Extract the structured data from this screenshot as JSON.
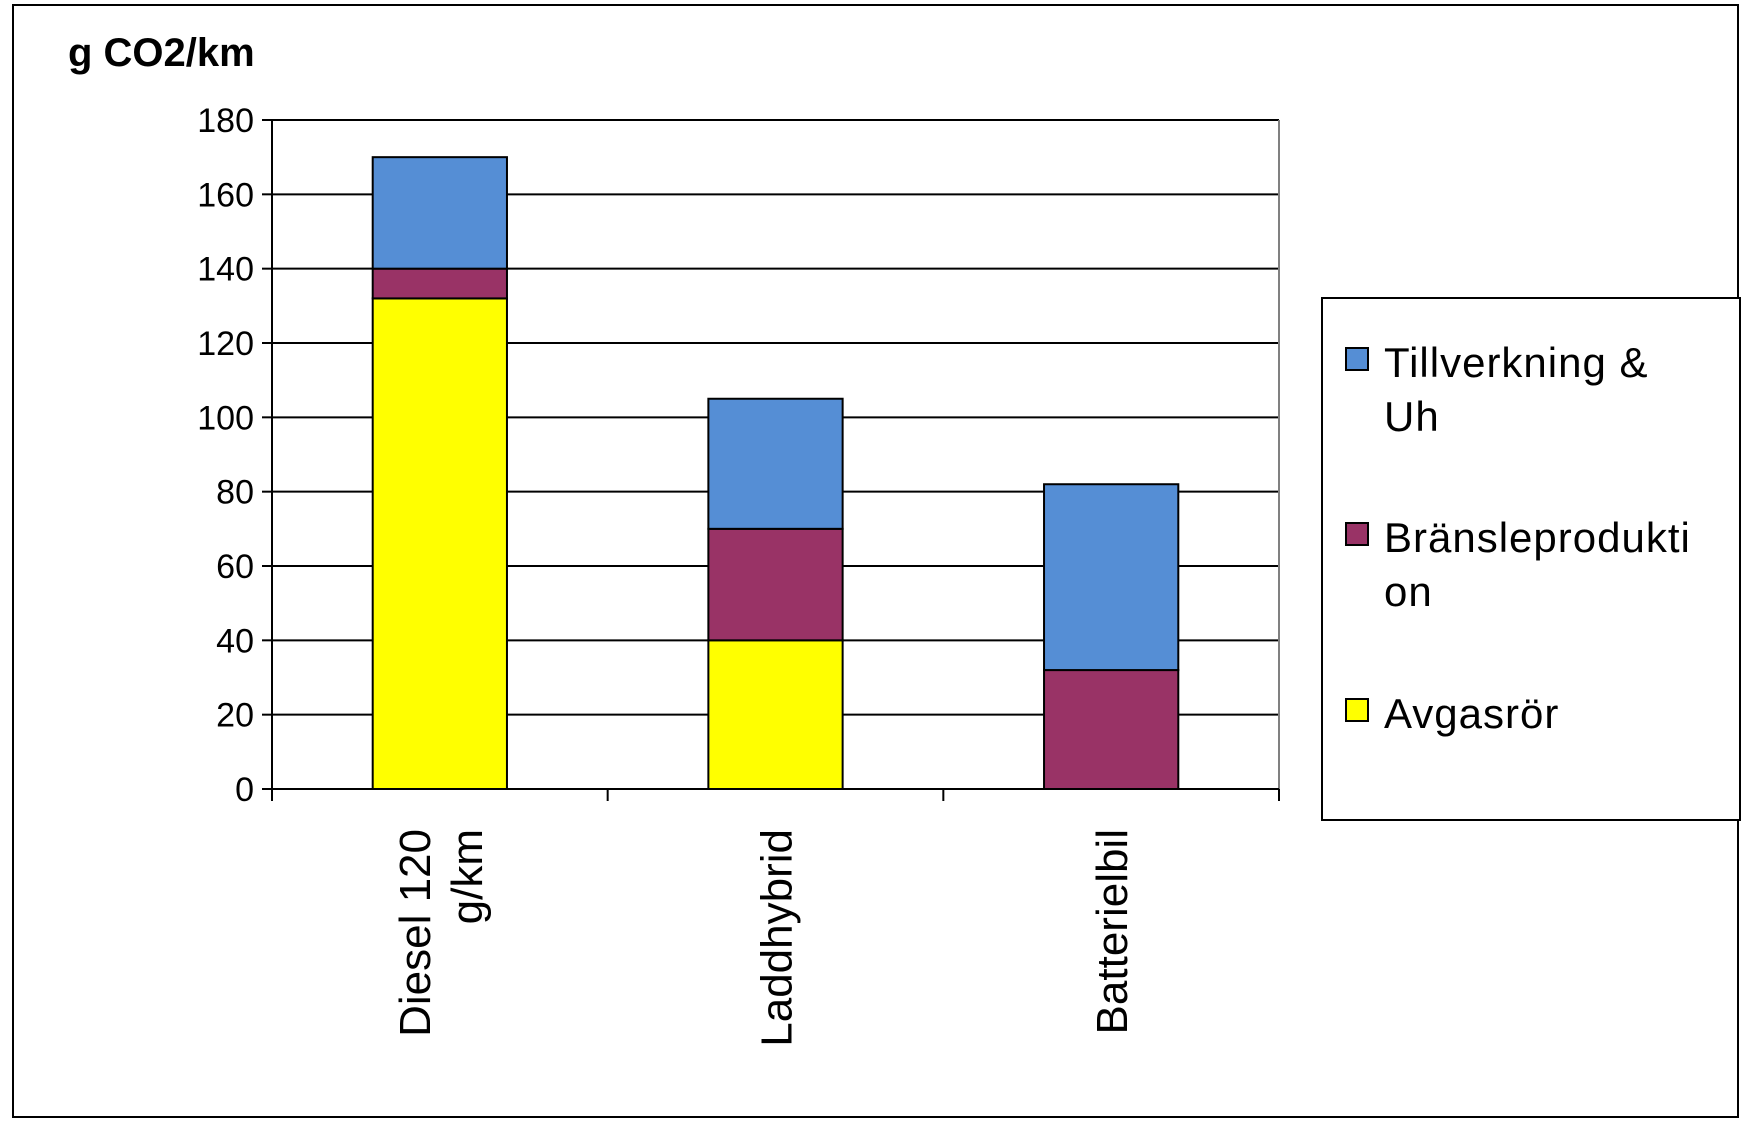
{
  "chart_data": {
    "type": "bar",
    "stacked": true,
    "title": "",
    "ylabel": "g CO2/km",
    "xlabel": "",
    "ylim": [
      0,
      180
    ],
    "yticks": [
      0,
      20,
      40,
      60,
      80,
      100,
      120,
      140,
      160,
      180
    ],
    "grid": true,
    "legend_position": "right",
    "categories": [
      [
        "Diesel 120",
        "g/km"
      ],
      [
        "Laddhybrid"
      ],
      [
        "Batterielbil"
      ]
    ],
    "series": [
      {
        "name": "Avgasrör",
        "color": "#ffff00",
        "values": [
          132,
          40,
          0
        ]
      },
      {
        "name": "Bränsleproduktion",
        "color": "#993366",
        "values": [
          8,
          30,
          32
        ]
      },
      {
        "name": "Tillverkning & Uh",
        "color": "#558ed5",
        "values": [
          30,
          35,
          50
        ]
      }
    ],
    "legend": [
      {
        "lines": [
          "Tillverkning &",
          "Uh"
        ],
        "color": "#558ed5"
      },
      {
        "lines": [
          "Bränsleprodukti",
          "on"
        ],
        "color": "#993366"
      },
      {
        "lines": [
          "Avgasrör"
        ],
        "color": "#ffff00"
      }
    ]
  }
}
